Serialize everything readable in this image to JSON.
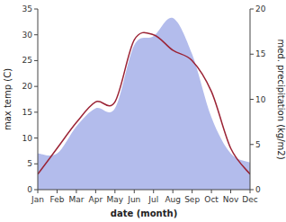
{
  "chart_data": {
    "type": "line",
    "categories": [
      "Jan",
      "Feb",
      "Mar",
      "Apr",
      "May",
      "Jun",
      "Jul",
      "Aug",
      "Sep",
      "Oct",
      "Nov",
      "Dec"
    ],
    "series": [
      {
        "type": "area",
        "color": "#b3bcec",
        "axis": "y2",
        "values": [
          4,
          4,
          7,
          9,
          9,
          16,
          17,
          19,
          15,
          8,
          4,
          3
        ]
      },
      {
        "type": "line",
        "color": "#9b2335",
        "values": [
          3,
          8,
          13,
          17,
          17,
          29,
          30,
          27,
          25,
          19,
          8,
          3
        ]
      }
    ],
    "xlabel": "date (month)",
    "ylabel": "max temp (C)",
    "y2label": "med. precipitation (kg/m2)",
    "ylim": [
      0,
      35
    ],
    "yticks": [
      0,
      5,
      10,
      15,
      20,
      25,
      30,
      35
    ],
    "y2lim": [
      0,
      20
    ],
    "y2ticks": [
      0,
      5,
      10,
      15,
      20
    ],
    "grid": false
  }
}
